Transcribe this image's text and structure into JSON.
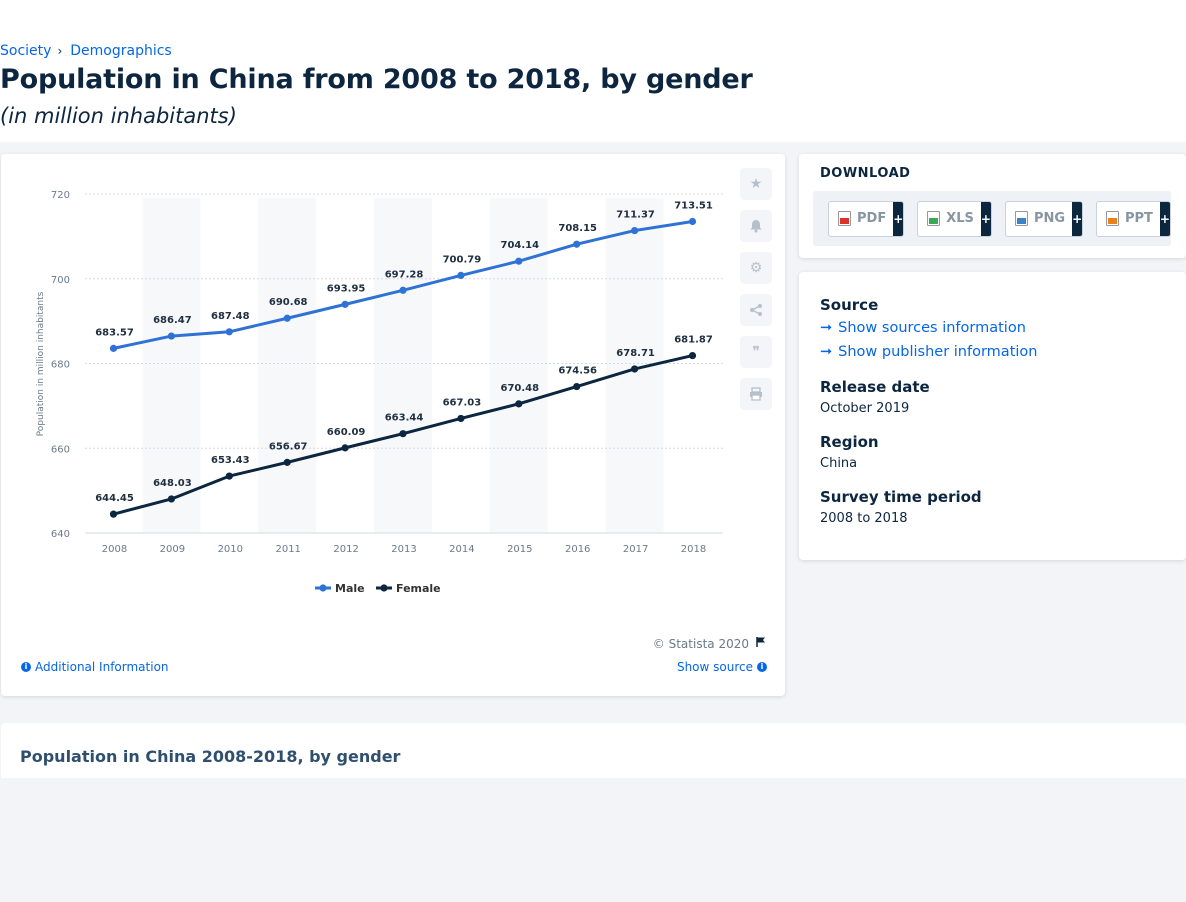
{
  "breadcrumb": {
    "items": [
      "Society",
      "Demographics"
    ],
    "separator": "›"
  },
  "title": "Population in China from 2008 to 2018, by gender",
  "subtitle": "(in million inhabitants)",
  "chart_card": {
    "copyright": "© Statista 2020",
    "additional_info": "Additional Information",
    "show_source": "Show source",
    "tools": [
      "star-icon",
      "bell-icon",
      "gear-icon",
      "share-icon",
      "quote-icon",
      "print-icon"
    ]
  },
  "download": {
    "title": "DOWNLOAD",
    "buttons": [
      {
        "label": "PDF",
        "icon": "pdf-file-icon",
        "color": "#d9342b"
      },
      {
        "label": "XLS",
        "icon": "xls-file-icon",
        "color": "#3aa856"
      },
      {
        "label": "PNG",
        "icon": "png-file-icon",
        "color": "#3b82c4"
      },
      {
        "label": "PPT",
        "icon": "ppt-file-icon",
        "color": "#e8801b"
      }
    ],
    "plus": "+"
  },
  "source_panel": {
    "source_heading": "Source",
    "show_sources": "Show sources information",
    "show_publisher": "Show publisher information",
    "release_heading": "Release date",
    "release_value": "October 2019",
    "region_heading": "Region",
    "region_value": "China",
    "survey_heading": "Survey time period",
    "survey_value": "2008 to 2018"
  },
  "bottom": {
    "title": "Population in China 2008-2018, by gender"
  },
  "colors": {
    "male": "#2f72d6",
    "female": "#0d263f",
    "accent_link": "#0666e5"
  },
  "chart_data": {
    "type": "line",
    "x": [
      "2008",
      "2009",
      "2010",
      "2011",
      "2012",
      "2013",
      "2014",
      "2015",
      "2016",
      "2017",
      "2018"
    ],
    "ylabel": "Population in million inhabitants",
    "ylim": [
      640,
      720
    ],
    "yticks": [
      640,
      660,
      680,
      700,
      720
    ],
    "grid": true,
    "legend_position": "bottom",
    "series": [
      {
        "name": "Male",
        "color": "#2f72d6",
        "values": [
          683.57,
          686.47,
          687.48,
          690.68,
          693.95,
          697.28,
          700.79,
          704.14,
          708.15,
          711.37,
          713.51
        ]
      },
      {
        "name": "Female",
        "color": "#0d263f",
        "values": [
          644.45,
          648.03,
          653.43,
          656.67,
          660.09,
          663.44,
          667.03,
          670.48,
          674.56,
          678.71,
          681.87
        ]
      }
    ]
  }
}
